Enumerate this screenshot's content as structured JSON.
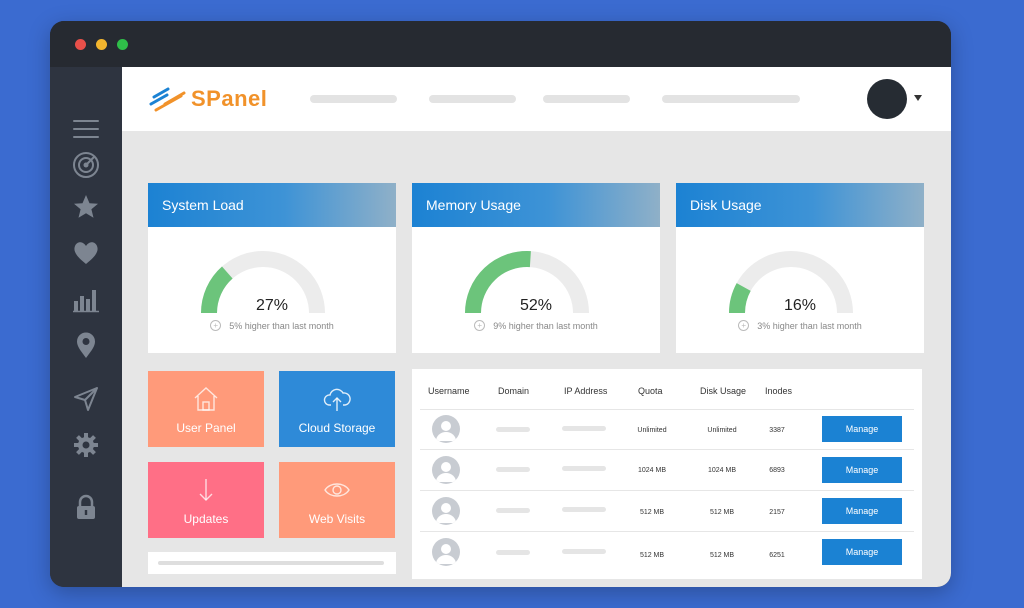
{
  "app": {
    "logo_text": "SPanel"
  },
  "colors": {
    "accent": "#1b82d3",
    "logo": "#f1922a",
    "gauge_fill": "#6cc47b",
    "gauge_track": "#ececec"
  },
  "sidebar": {
    "items": [
      {
        "name": "menu-icon"
      },
      {
        "name": "radar-icon"
      },
      {
        "name": "star-icon"
      },
      {
        "name": "heart-icon"
      },
      {
        "name": "bar-chart-icon"
      },
      {
        "name": "location-pin-icon"
      },
      {
        "name": "send-icon"
      },
      {
        "name": "gear-icon"
      },
      {
        "name": "lock-icon"
      }
    ]
  },
  "cards": [
    {
      "title": "System Load",
      "percent": "27%",
      "value": 27,
      "note": "5% higher than last month"
    },
    {
      "title": "Memory Usage",
      "percent": "52%",
      "value": 52,
      "note": "9% higher than last month"
    },
    {
      "title": "Disk Usage",
      "percent": "16%",
      "value": 16,
      "note": "3% higher than last month"
    }
  ],
  "tiles": [
    {
      "label": "User Panel",
      "color": "#ff9a7a",
      "icon": "house-icon"
    },
    {
      "label": "Cloud Storage",
      "color": "#2e8ad8",
      "icon": "cloud-upload-icon"
    },
    {
      "label": "Updates",
      "color": "#ff6f86",
      "icon": "arrow-down-icon"
    },
    {
      "label": "Web Visits",
      "color": "#ff9a7a",
      "icon": "eye-icon"
    }
  ],
  "table": {
    "headers": [
      "Username",
      "Domain",
      "IP Address",
      "Quota",
      "Disk Usage",
      "Inodes"
    ],
    "rows": [
      {
        "quota": "Unlimited",
        "disk": "Unlimited",
        "inodes": "3387",
        "action": "Manage"
      },
      {
        "quota": "1024 MB",
        "disk": "1024 MB",
        "inodes": "6893",
        "action": "Manage"
      },
      {
        "quota": "512 MB",
        "disk": "512 MB",
        "inodes": "2157",
        "action": "Manage"
      },
      {
        "quota": "512 MB",
        "disk": "512 MB",
        "inodes": "6251",
        "action": "Manage"
      }
    ]
  }
}
